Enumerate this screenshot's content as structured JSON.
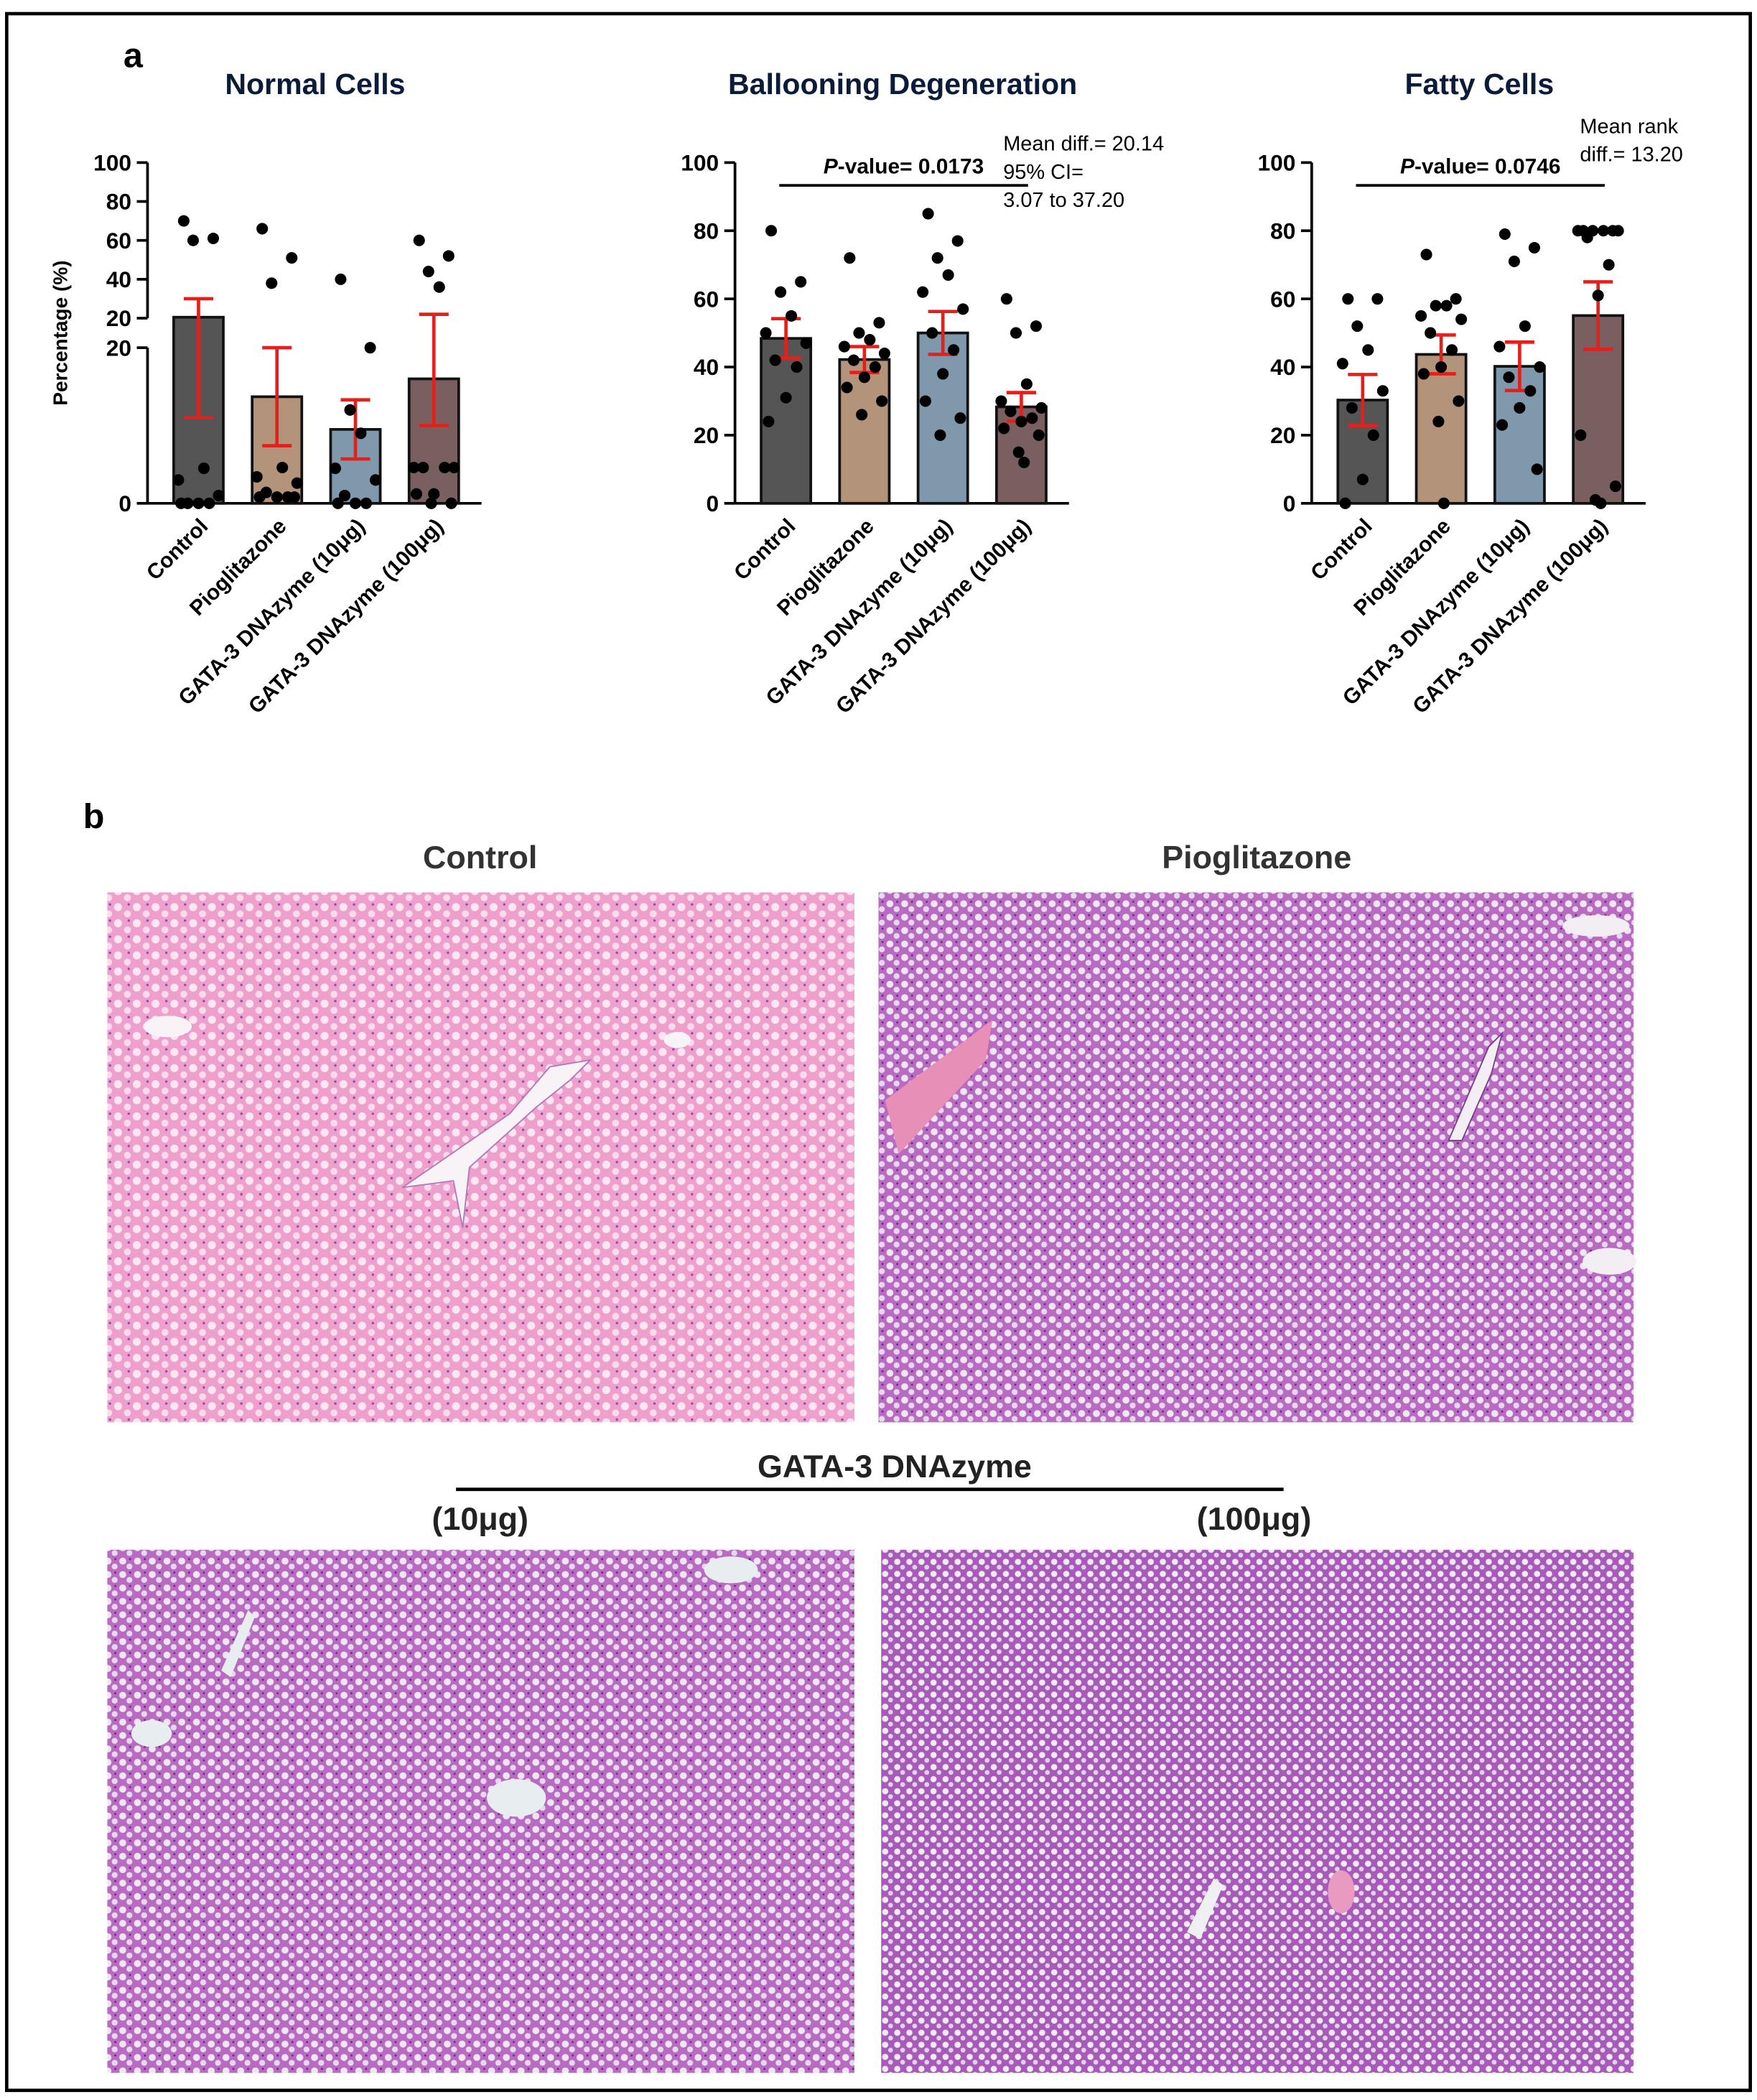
{
  "panel_a_label": "a",
  "chart_data": [
    {
      "type": "bar",
      "title": "Normal Cells",
      "ylabel": "Percentage (%)",
      "categories": [
        "Control",
        "Pioglitazone",
        "GATA-3 DNAzyme (10μg)",
        "GATA-3 DNAzyme (100μg)"
      ],
      "colors": [
        "#555555",
        "#b3937a",
        "#7f98ab",
        "#7a5f60"
      ],
      "values": [
        20.5,
        13.7,
        9.5,
        16
      ],
      "errors": [
        9.5,
        6.3,
        3.8,
        6
      ],
      "points": [
        [
          70,
          61,
          60,
          4.5,
          3,
          1,
          0,
          0,
          0,
          0
        ],
        [
          66,
          51,
          38,
          4.6,
          3.4,
          2.6,
          1.4,
          0.8,
          0.8,
          0.8,
          0.8
        ],
        [
          40,
          20,
          12,
          9,
          4.5,
          3,
          1,
          0,
          0,
          0
        ],
        [
          60,
          52,
          44,
          36,
          4.6,
          4.6,
          4.6,
          4.6,
          1.2,
          1.2,
          0,
          0
        ]
      ],
      "segments": [
        {
          "ylim": [
            0,
            20
          ],
          "yticks": [
            0,
            20
          ]
        },
        {
          "ylim": [
            20,
            100
          ],
          "yticks": [
            20,
            40,
            60,
            80,
            100
          ]
        }
      ]
    },
    {
      "type": "bar",
      "title": "Ballooning Degeneration",
      "categories": [
        "Control",
        "Pioglitazone",
        "GATA-3 DNAzyme (10μg)",
        "GATA-3 DNAzyme (100μg)"
      ],
      "colors": [
        "#555555",
        "#b3937a",
        "#7f98ab",
        "#7a5f60"
      ],
      "values": [
        48.4,
        42.2,
        50,
        28.3
      ],
      "errors": [
        5.8,
        3.8,
        6.3,
        4.2
      ],
      "points": [
        [
          80,
          65,
          62,
          55,
          50,
          47,
          42,
          40,
          31,
          24
        ],
        [
          72,
          53,
          50,
          48,
          46,
          44,
          42,
          40,
          37,
          34,
          30,
          26
        ],
        [
          85,
          77,
          72,
          67,
          62,
          57,
          50,
          45,
          38,
          30,
          25,
          20
        ],
        [
          60,
          52,
          50,
          35,
          30,
          28,
          27,
          25,
          24,
          22,
          20,
          15,
          12
        ]
      ],
      "ylim": [
        0,
        100
      ],
      "yticks": [
        0,
        20,
        40,
        60,
        80,
        100
      ],
      "comparison": {
        "groups": [
          0,
          3
        ],
        "p_symbol": "P",
        "p_text": "-value= 0.0173"
      },
      "annotation": [
        "Mean diff.= 20.14",
        "95% CI=",
        "3.07 to 37.20"
      ]
    },
    {
      "type": "bar",
      "title": "Fatty Cells",
      "categories": [
        "Control",
        "Pioglitazone",
        "GATA-3 DNAzyme (10μg)",
        "GATA-3 DNAzyme (100μg)"
      ],
      "colors": [
        "#555555",
        "#b3937a",
        "#7f98ab",
        "#7a5f60"
      ],
      "values": [
        30.3,
        43.7,
        40.2,
        55.1
      ],
      "errors": [
        7.5,
        5.7,
        7.1,
        9.9
      ],
      "points": [
        [
          60,
          60,
          52,
          45,
          41,
          33,
          28,
          20,
          7,
          0
        ],
        [
          73,
          60,
          58,
          58,
          55,
          54,
          50,
          45,
          40,
          38,
          30,
          24,
          0
        ],
        [
          79,
          75,
          71,
          52,
          46,
          40,
          37,
          33,
          28,
          23,
          10
        ],
        [
          80,
          80,
          80,
          80,
          80,
          80,
          78,
          70,
          61,
          20,
          5,
          1,
          0
        ]
      ],
      "ylim": [
        0,
        100
      ],
      "yticks": [
        0,
        20,
        40,
        60,
        80,
        100
      ],
      "comparison": {
        "groups": [
          0,
          3
        ],
        "p_symbol": "P",
        "p_text": "-value= 0.0746"
      },
      "annotation": [
        "Mean rank",
        "diff.= 13.20"
      ]
    }
  ],
  "panel_b": {
    "label": "b",
    "top_titles": [
      "Control",
      "Pioglitazone"
    ],
    "group_title": "GATA-3 DNAzyme",
    "dose_labels": [
      "(10μg)",
      "(100μg)"
    ]
  }
}
